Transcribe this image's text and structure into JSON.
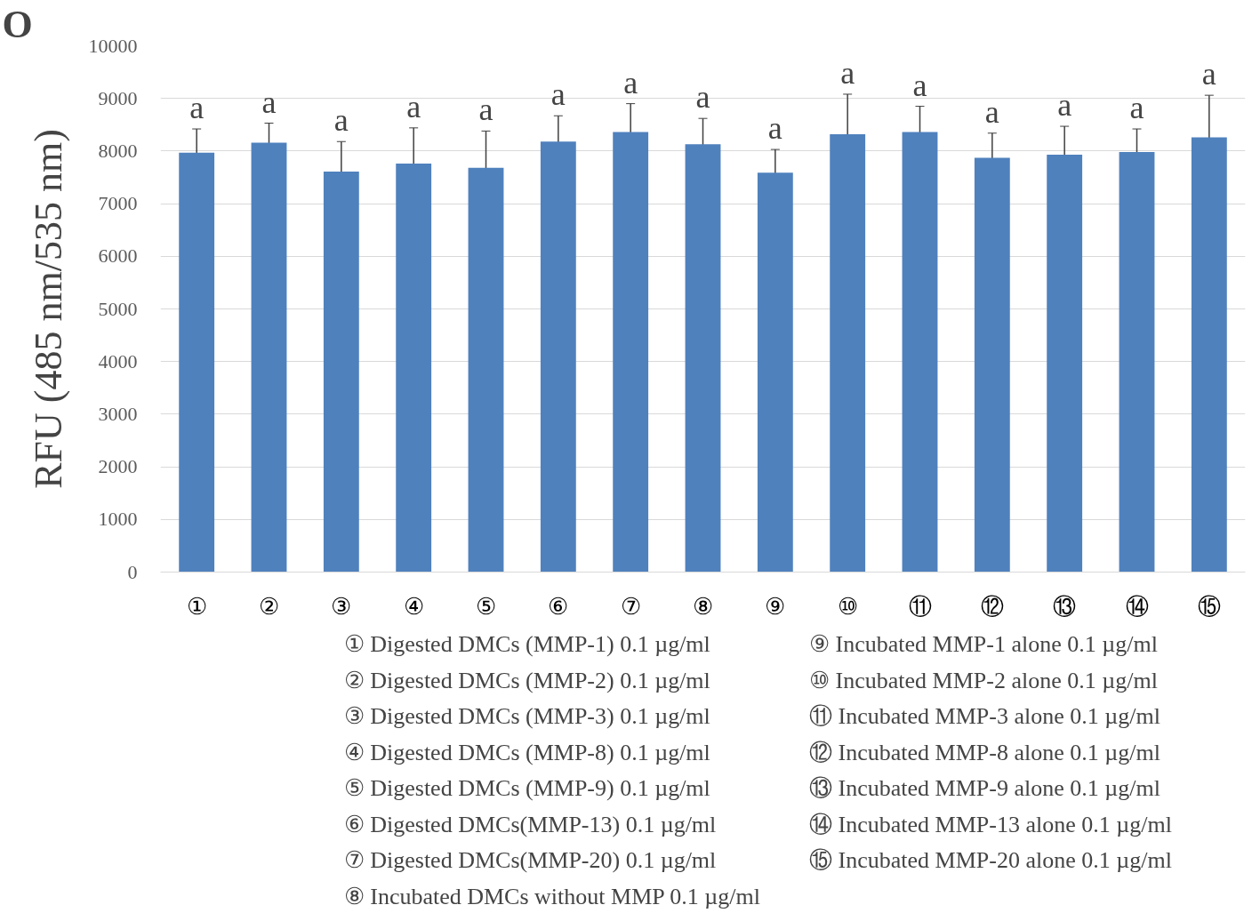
{
  "chart_data": {
    "type": "bar",
    "title": "O",
    "ylabel": "RFU (485 nm/535 nm)",
    "categories": [
      "①",
      "②",
      "③",
      "④",
      "⑤",
      "⑥",
      "⑦",
      "⑧",
      "⑨",
      "⑩",
      "⑪",
      "⑫",
      "⑬",
      "⑭",
      "⑮"
    ],
    "values": [
      7970,
      8160,
      7610,
      7760,
      7680,
      8180,
      8360,
      8130,
      7590,
      8320,
      8360,
      7870,
      7930,
      7980,
      8260
    ],
    "errors": [
      450,
      370,
      570,
      680,
      700,
      490,
      540,
      490,
      440,
      760,
      490,
      470,
      540,
      440,
      800
    ],
    "color": "#4f81bd",
    "ylim": [
      0,
      10000
    ],
    "yticks": [
      0,
      1000,
      2000,
      3000,
      4000,
      5000,
      6000,
      7000,
      8000,
      9000,
      10000
    ],
    "grid": "y",
    "annotations": [
      "a",
      "a",
      "a",
      "a",
      "a",
      "a",
      "a",
      "a",
      "a",
      "a",
      "a",
      "a",
      "a",
      "a",
      "a",
      "①   Digested DMCs (MMP-1) 0.1 µg/ml",
      "②   Digested DMCs (MMP-2) 0.1 µg/ml",
      "③   Digested DMCs (MMP-3) 0.1 µg/ml",
      "④   Digested DMCs (MMP-8) 0.1 µg/ml",
      "⑤   Digested DMCs (MMP-9) 0.1 µg/ml",
      "⑥   Digested DMCs(MMP-13) 0.1 µg/ml",
      "⑦   Digested DMCs(MMP-20) 0.1 µg/ml",
      "⑧   Incubated DMCs without MMP 0.1 µg/ml",
      "⑨   Incubated MMP-1 alone 0.1 µg/ml",
      "⑩   Incubated MMP-2 alone 0.1 µg/ml",
      "⑪   Incubated MMP-3 alone 0.1 µg/ml",
      "⑫   Incubated MMP-8 alone 0.1 µg/ml",
      "⑬   Incubated MMP-9 alone 0.1 µg/ml",
      "⑭   Incubated MMP-13 alone 0.1 µg/ml",
      "⑮   Incubated MMP-20 alone 0.1 µg/ml"
    ]
  }
}
